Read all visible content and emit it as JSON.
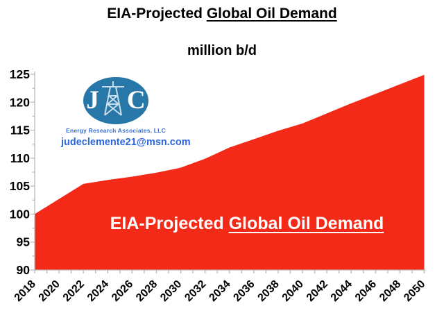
{
  "title": {
    "prefix": "EIA-Projected ",
    "underlined": "Global Oil Demand"
  },
  "subtitle": "million b/d",
  "logo": {
    "letter_left": "J",
    "letter_right": "C",
    "derrick_icon": "oil-derrick-icon",
    "org": "Energy Research Associates, LLC",
    "email": "judeclemente21@msn.com",
    "ellipse_color": "#2778a9",
    "org_color": "#3a6fd0",
    "email_color": "#2b66e0"
  },
  "overlay_label": {
    "prefix": "EIA-Projected ",
    "underlined": "Global Oil Demand"
  },
  "chart_data": {
    "type": "area",
    "title": "EIA-Projected Global Oil Demand",
    "units_label": "million b/d",
    "x": [
      2018,
      2020,
      2022,
      2024,
      2026,
      2028,
      2030,
      2032,
      2034,
      2036,
      2038,
      2040,
      2042,
      2044,
      2046,
      2048,
      2050
    ],
    "values": [
      100.0,
      102.7,
      105.4,
      106.1,
      106.7,
      107.4,
      108.3,
      109.9,
      111.9,
      113.4,
      114.9,
      116.2,
      118.0,
      119.8,
      121.5,
      123.2,
      124.9
    ],
    "xlim": [
      2018,
      2050
    ],
    "ylim": [
      90,
      125
    ],
    "y_major_step": 5,
    "y_minor_step": 2.5,
    "x_minor_tick_step_years": 1,
    "x_label_step_years": 2,
    "grid": false,
    "legend": "none",
    "fill_color": "#f42a19",
    "axis_color": "#b9b9b9",
    "tick_label_color": "#000000"
  }
}
